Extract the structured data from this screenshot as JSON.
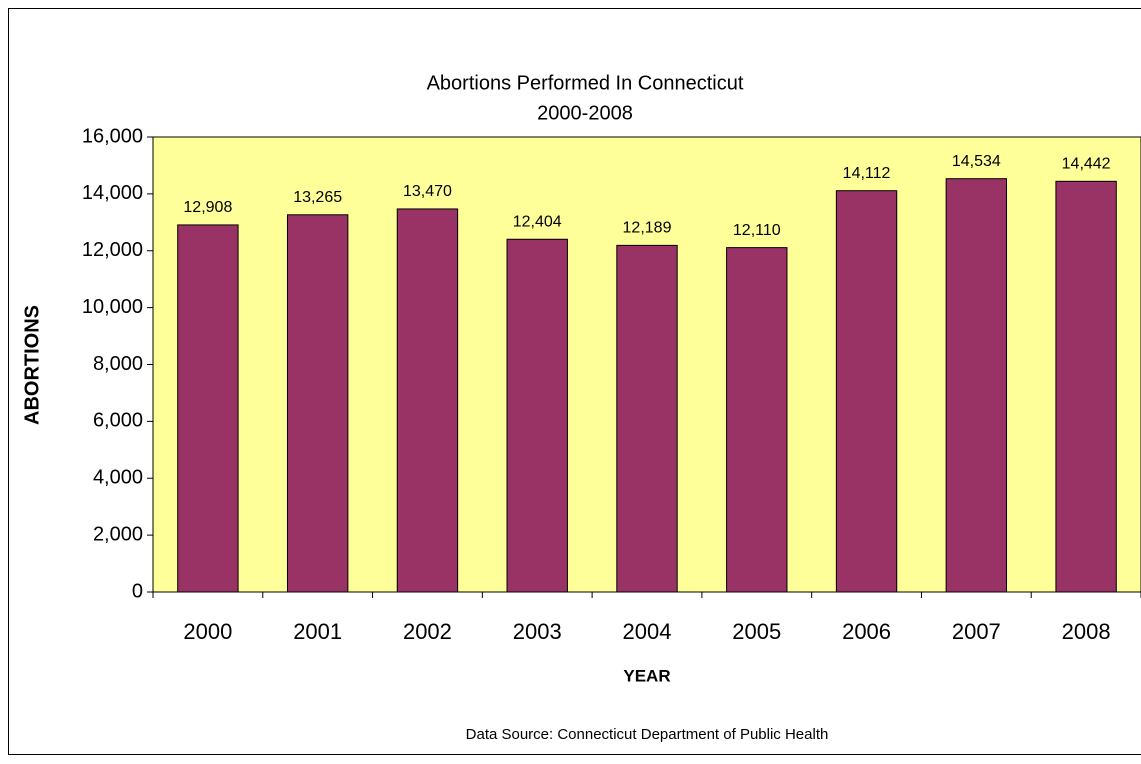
{
  "chart_data": {
    "type": "bar",
    "title": "Abortions Performed In Connecticut",
    "subtitle": "2000-2008",
    "x_label": "YEAR",
    "y_label": "ABORTIONS",
    "source": "Data Source: Connecticut Department of Public Health",
    "categories": [
      "2000",
      "2001",
      "2002",
      "2003",
      "2004",
      "2005",
      "2006",
      "2007",
      "2008"
    ],
    "values": [
      12908,
      13265,
      13470,
      12404,
      12189,
      12110,
      14112,
      14534,
      14442
    ],
    "value_labels": [
      "12,908",
      "13,265",
      "13,470",
      "12,404",
      "12,189",
      "12,110",
      "14,112",
      "14,534",
      "14,442"
    ],
    "color": "#993366",
    "plot_background": "#ffff99",
    "ylim": [
      0,
      16000
    ],
    "yticks": [
      0,
      {
        "value": 2000,
        "label": "2,000"
      },
      {
        "value": 4000,
        "label": "4,000"
      },
      {
        "value": 6000,
        "label": "6,000"
      },
      {
        "value": 8000,
        "label": "8,000"
      },
      {
        "value": 10000,
        "label": "10,000"
      },
      {
        "value": 12000,
        "label": "12,000"
      },
      {
        "value": 14000,
        "label": "14,000"
      },
      {
        "value": 16000,
        "label": "16,000"
      }
    ],
    "grid": false
  }
}
